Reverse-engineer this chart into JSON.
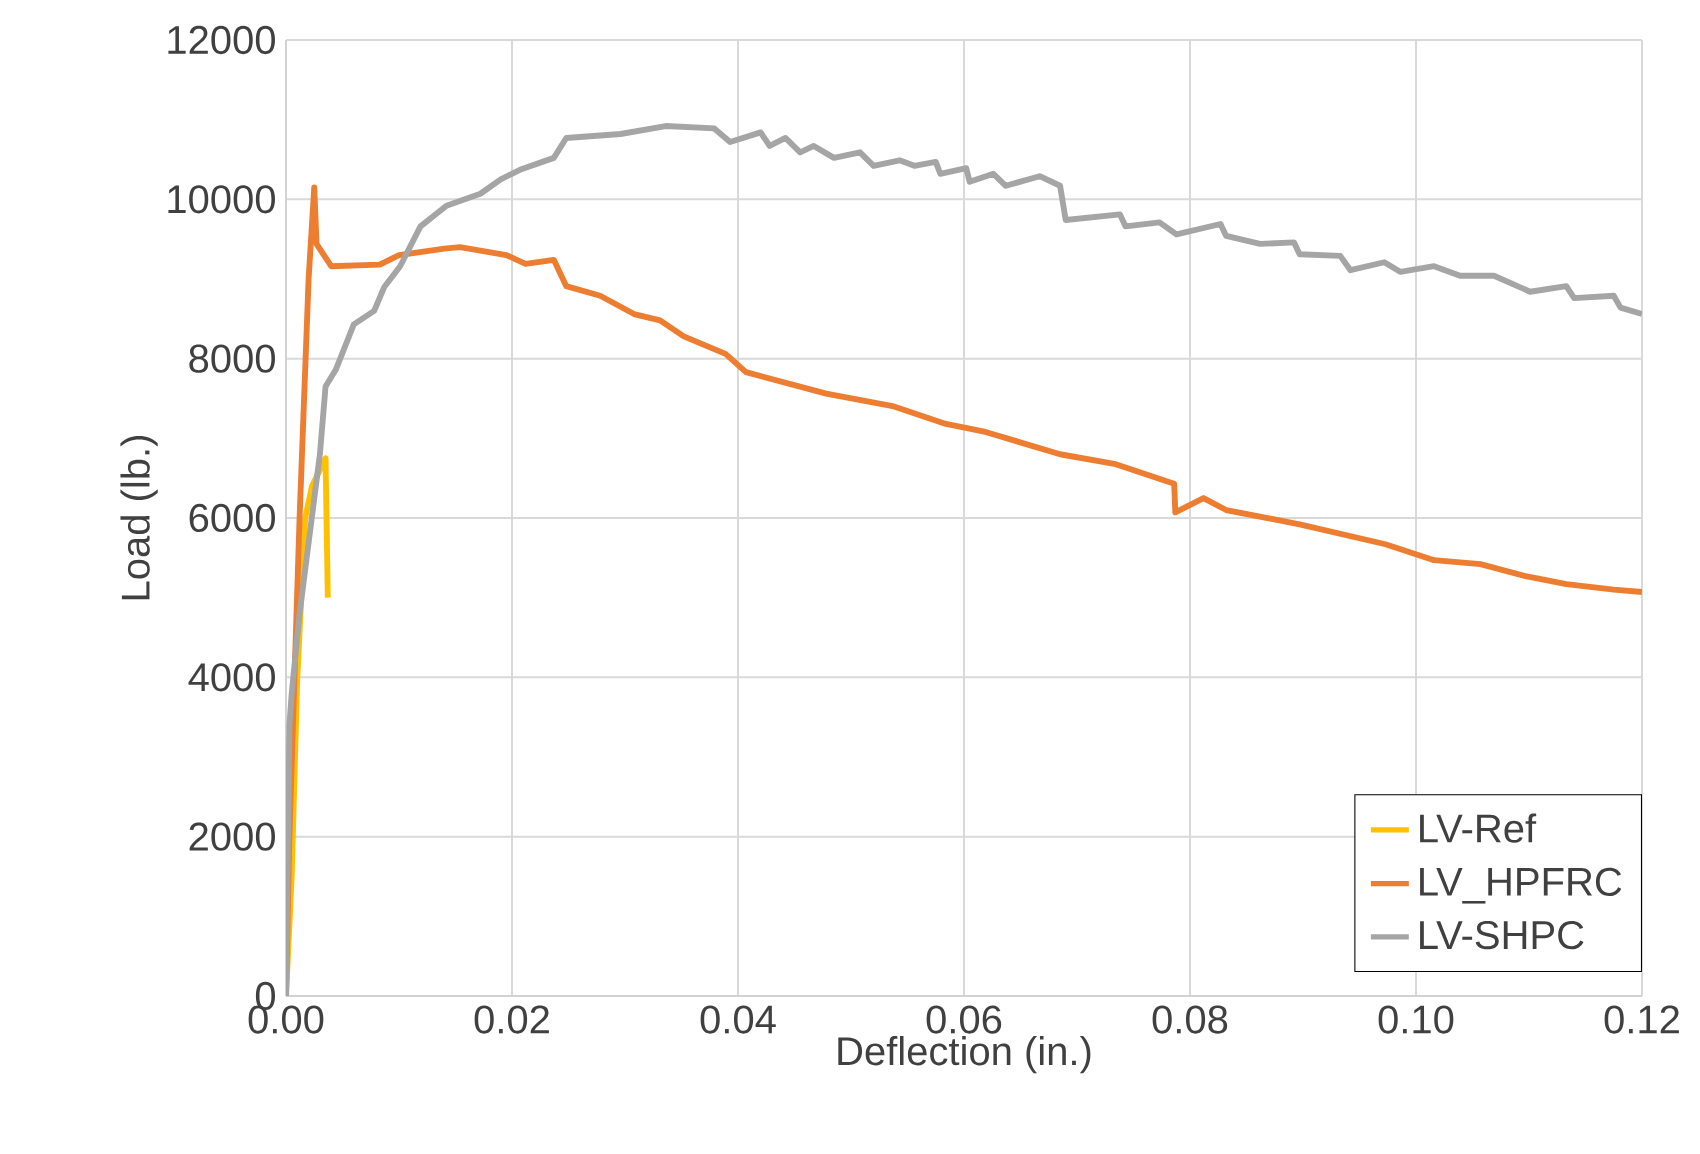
{
  "chart_data": {
    "type": "line",
    "xlabel": "Deflection (in.)",
    "ylabel": "Load (lb.)",
    "xlim": [
      0,
      0.12
    ],
    "ylim": [
      0,
      12000
    ],
    "xticks": [
      {
        "value": 0,
        "label": "0.00"
      },
      {
        "value": 0.02,
        "label": "0.02"
      },
      {
        "value": 0.04,
        "label": "0.04"
      },
      {
        "value": 0.06,
        "label": "0.06"
      },
      {
        "value": 0.08,
        "label": "0.08"
      },
      {
        "value": 0.1,
        "label": "0.10"
      },
      {
        "value": 0.12,
        "label": "0.12"
      }
    ],
    "yticks": [
      0,
      2000,
      4000,
      6000,
      8000,
      10000,
      12000
    ],
    "grid": true,
    "legend": "bottom right",
    "marker": "none",
    "line_style": "solid",
    "series": [
      {
        "name": "LV-Ref",
        "color": "#ffc000",
        "x": [
          0,
          0.0005,
          0.001,
          0.0017,
          0.0023,
          0.0035,
          0.0037
        ],
        "values": [
          0,
          1500,
          4000,
          6000,
          6400,
          6750,
          5000
        ]
      },
      {
        "name": "LV_HPFRC",
        "color": "#ed7d31",
        "x": [
          0,
          0.0003,
          0.0012,
          0.002,
          0.0025,
          0.0027,
          0.004,
          0.0083,
          0.01,
          0.014,
          0.0154,
          0.0195,
          0.0212,
          0.0237,
          0.0248,
          0.0278,
          0.0308,
          0.0331,
          0.0352,
          0.0389,
          0.0407,
          0.0478,
          0.0538,
          0.0584,
          0.0619,
          0.0685,
          0.0733,
          0.0786,
          0.0787,
          0.0812,
          0.0832,
          0.0897,
          0.0973,
          0.1016,
          0.1057,
          0.1097,
          0.1133,
          0.1175,
          0.12
        ],
        "values": [
          0,
          2000,
          6000,
          9000,
          10150,
          9440,
          9160,
          9180,
          9300,
          9380,
          9400,
          9300,
          9190,
          9240,
          8910,
          8790,
          8560,
          8480,
          8280,
          8060,
          7830,
          7560,
          7400,
          7180,
          7080,
          6800,
          6680,
          6430,
          6070,
          6250,
          6100,
          5920,
          5670,
          5470,
          5420,
          5270,
          5170,
          5100,
          5070
        ]
      },
      {
        "name": "LV-SHPC",
        "color": "#a5a5a5",
        "x": [
          0,
          0.0003,
          0.0005,
          0.0012,
          0.0021,
          0.003,
          0.0035,
          0.0044,
          0.006,
          0.0078,
          0.0087,
          0.0101,
          0.0119,
          0.0142,
          0.0172,
          0.019,
          0.0207,
          0.0237,
          0.0248,
          0.0296,
          0.0336,
          0.0379,
          0.0393,
          0.042,
          0.0428,
          0.0442,
          0.0455,
          0.0467,
          0.0485,
          0.0508,
          0.052,
          0.0543,
          0.0556,
          0.0575,
          0.0579,
          0.0602,
          0.0605,
          0.0626,
          0.0637,
          0.0667,
          0.0685,
          0.069,
          0.0738,
          0.0743,
          0.0773,
          0.0788,
          0.0827,
          0.0832,
          0.0862,
          0.0892,
          0.0897,
          0.0933,
          0.0942,
          0.0972,
          0.0986,
          0.1016,
          0.1039,
          0.1069,
          0.1101,
          0.1133,
          0.114,
          0.1175,
          0.1181,
          0.12
        ],
        "values": [
          0,
          3400,
          3790,
          4800,
          5800,
          6800,
          7650,
          7860,
          8430,
          8600,
          8900,
          9160,
          9660,
          9920,
          10070,
          10250,
          10370,
          10520,
          10770,
          10820,
          10920,
          10890,
          10720,
          10840,
          10670,
          10770,
          10590,
          10670,
          10520,
          10590,
          10420,
          10490,
          10420,
          10470,
          10320,
          10390,
          10220,
          10320,
          10170,
          10290,
          10170,
          9740,
          9810,
          9660,
          9710,
          9560,
          9690,
          9540,
          9440,
          9460,
          9310,
          9290,
          9110,
          9210,
          9090,
          9160,
          9040,
          9040,
          8840,
          8910,
          8760,
          8790,
          8640,
          8560
        ]
      }
    ]
  }
}
